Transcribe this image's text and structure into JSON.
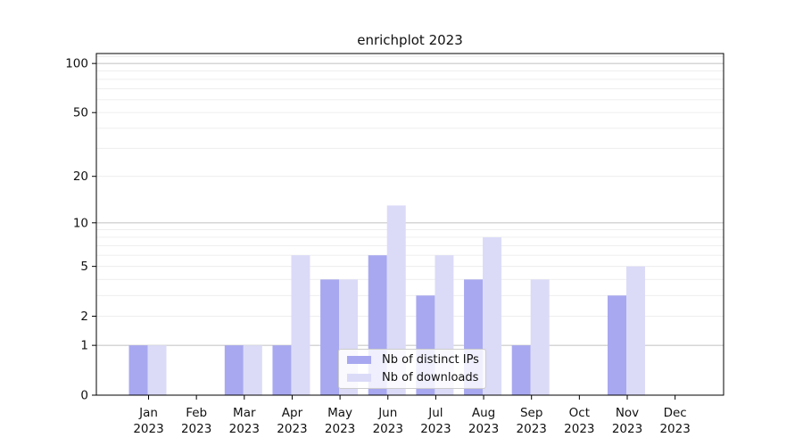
{
  "chart_data": {
    "type": "bar",
    "title": "enrichplot 2023",
    "months": [
      "Jan",
      "Feb",
      "Mar",
      "Apr",
      "May",
      "Jun",
      "Jul",
      "Aug",
      "Sep",
      "Oct",
      "Nov",
      "Dec"
    ],
    "year": "2023",
    "series": [
      {
        "name": "Nb of distinct IPs",
        "color": "#a8a8f0",
        "values": [
          1,
          0,
          1,
          1,
          4,
          6,
          3,
          4,
          1,
          0,
          3,
          0
        ]
      },
      {
        "name": "Nb of downloads",
        "color": "#dbdbf8",
        "values": [
          1,
          0,
          1,
          6,
          4,
          13,
          6,
          8,
          4,
          0,
          5,
          0
        ]
      }
    ],
    "yscale": "log1p",
    "ylim": [
      0,
      115
    ],
    "yticks": [
      0,
      1,
      2,
      5,
      10,
      20,
      50,
      100
    ],
    "grid": {
      "on": true,
      "major_at": [
        1,
        10,
        100
      ],
      "minor_at": [
        2,
        3,
        4,
        5,
        6,
        7,
        8,
        9,
        20,
        30,
        40,
        50,
        60,
        70,
        80,
        90,
        110
      ]
    },
    "legend": {
      "position": "inside-bottom-center"
    }
  },
  "colors": {
    "bar_dark": "#a8a8f0",
    "bar_light": "#dbdbf8",
    "grid_major": "#c8c8c8",
    "grid_minor": "#ececec",
    "axis": "#000000",
    "text": "#111111",
    "legend_border": "#cccccc"
  }
}
